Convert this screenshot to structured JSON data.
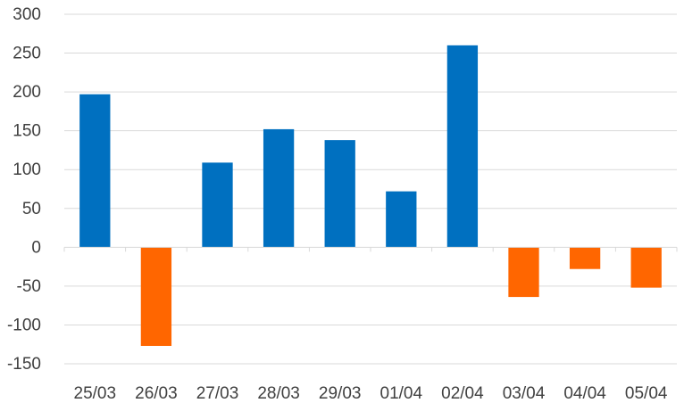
{
  "chart_data": {
    "type": "bar",
    "title": "",
    "xlabel": "",
    "ylabel": "",
    "categories": [
      "25/03",
      "26/03",
      "27/03",
      "28/03",
      "29/03",
      "01/04",
      "02/04",
      "03/04",
      "04/04",
      "05/04"
    ],
    "values": [
      197,
      -127,
      109,
      152,
      138,
      72,
      260,
      -64,
      -28,
      -52
    ],
    "ylim": [
      -150,
      300
    ],
    "yticks": [
      -150,
      -100,
      -50,
      0,
      50,
      100,
      150,
      200,
      250,
      300
    ],
    "ytick_labels": [
      "-150",
      "-100",
      "-50",
      "0",
      "50",
      "100",
      "150",
      "200",
      "250",
      "300"
    ],
    "grid": true,
    "legend": "none",
    "colors": {
      "positive": "#0070c0",
      "negative": "#ff6600",
      "grid": "#d9d9d9",
      "text": "#404040"
    }
  }
}
